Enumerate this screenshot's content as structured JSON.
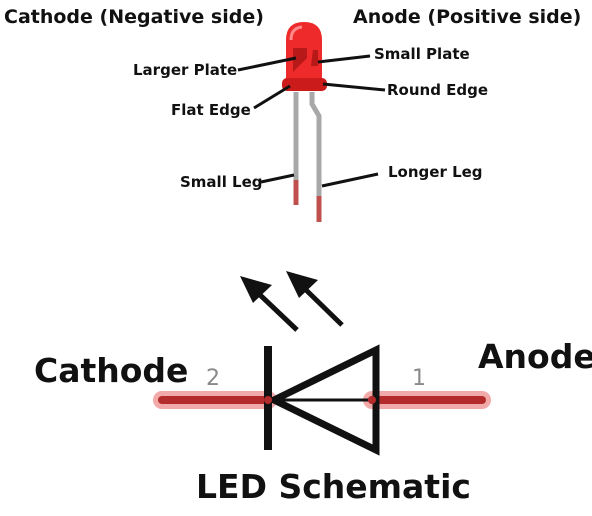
{
  "top": {
    "cathode_header": "Cathode (Negative side)",
    "anode_header": "Anode (Positive side)",
    "labels": {
      "larger_plate": "Larger Plate",
      "small_plate": "Small Plate",
      "flat_edge": "Flat Edge",
      "round_edge": "Round Edge",
      "small_leg": "Small Leg",
      "longer_leg": "Longer Leg"
    }
  },
  "schematic": {
    "cathode_label": "Cathode",
    "anode_label": "Anode",
    "pin_cathode": "2",
    "pin_anode": "1",
    "title": "LED Schematic"
  },
  "colors": {
    "led_body": "#ee2a2a",
    "led_dark": "#b01616",
    "lead_grey": "#a8a8a8",
    "lead_tip": "#c0504d",
    "wire_red": "#b32b2b",
    "wire_glow": "#f2a9a9",
    "ink": "#111111"
  }
}
